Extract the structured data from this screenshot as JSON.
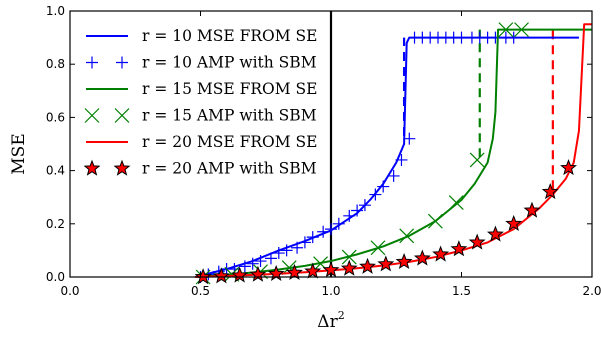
{
  "chart_data": {
    "type": "line",
    "xlabel": "Δr",
    "xlabel_sup": "2",
    "ylabel": "MSE",
    "xlim": [
      0.0,
      2.0
    ],
    "ylim": [
      0.0,
      1.0
    ],
    "xticks": [
      "0.0",
      "0.5",
      "1.0",
      "1.5",
      "2.0"
    ],
    "yticks": [
      "0.0",
      "0.2",
      "0.4",
      "0.6",
      "0.8",
      "1.0"
    ],
    "grid": false,
    "legend_position": "upper-left",
    "vertical_reference_line": {
      "x": 1.0,
      "color": "#000000"
    },
    "series": [
      {
        "name": "r = 10 MSE FROM SE",
        "style": "solid",
        "color": "#0000ff",
        "x": [
          0.48,
          0.6,
          0.7,
          0.8,
          0.9,
          1.0,
          1.1,
          1.15,
          1.2,
          1.25,
          1.28,
          1.29,
          1.3,
          1.95
        ],
        "y": [
          0.0,
          0.03,
          0.06,
          0.1,
          0.135,
          0.175,
          0.24,
          0.29,
          0.35,
          0.43,
          0.5,
          0.88,
          0.9,
          0.9
        ]
      },
      {
        "name": "r = 10 AMP with SBM",
        "style": "markers",
        "marker": "plus",
        "color": "#0000ff",
        "x": [
          0.5,
          0.53,
          0.57,
          0.6,
          0.63,
          0.67,
          0.7,
          0.73,
          0.77,
          0.8,
          0.83,
          0.87,
          0.9,
          0.93,
          0.97,
          1.0,
          1.03,
          1.07,
          1.1,
          1.13,
          1.17,
          1.2,
          1.24,
          1.27,
          1.3,
          1.32,
          1.35,
          1.38,
          1.41,
          1.44,
          1.47,
          1.5,
          1.54,
          1.57,
          1.6,
          1.63,
          1.67,
          1.7
        ],
        "y": [
          0.0,
          0.01,
          0.02,
          0.03,
          0.03,
          0.04,
          0.05,
          0.06,
          0.07,
          0.09,
          0.1,
          0.11,
          0.13,
          0.15,
          0.17,
          0.18,
          0.2,
          0.23,
          0.25,
          0.27,
          0.31,
          0.34,
          0.38,
          0.44,
          0.52,
          0.9,
          0.9,
          0.9,
          0.9,
          0.9,
          0.9,
          0.9,
          0.9,
          0.9,
          0.9,
          0.9,
          0.9,
          0.9
        ]
      },
      {
        "name": "r = 15 MSE FROM SE",
        "style": "solid",
        "color": "#008000",
        "x": [
          0.48,
          0.6,
          0.7,
          0.8,
          0.9,
          1.0,
          1.1,
          1.2,
          1.3,
          1.4,
          1.5,
          1.55,
          1.6,
          1.62,
          1.63,
          1.64,
          2.0
        ],
        "y": [
          0.0,
          0.008,
          0.017,
          0.028,
          0.042,
          0.06,
          0.085,
          0.115,
          0.155,
          0.21,
          0.29,
          0.35,
          0.43,
          0.52,
          0.62,
          0.93,
          0.93
        ]
      },
      {
        "name": "r = 15 AMP with SBM",
        "style": "markers",
        "marker": "x",
        "color": "#008000",
        "x": [
          0.51,
          0.62,
          0.73,
          0.84,
          0.96,
          1.07,
          1.18,
          1.29,
          1.4,
          1.48,
          1.56,
          1.67,
          1.73
        ],
        "y": [
          0.0,
          0.01,
          0.02,
          0.035,
          0.05,
          0.075,
          0.11,
          0.155,
          0.21,
          0.28,
          0.44,
          0.93,
          0.93
        ]
      },
      {
        "name": "r = 20 MSE FROM SE",
        "style": "solid",
        "color": "#ff0000",
        "x": [
          0.48,
          0.6,
          0.7,
          0.8,
          0.9,
          1.0,
          1.1,
          1.2,
          1.3,
          1.4,
          1.5,
          1.6,
          1.7,
          1.8,
          1.85,
          1.9,
          1.93,
          1.95,
          1.96,
          1.97,
          2.0
        ],
        "y": [
          0.0,
          0.004,
          0.008,
          0.012,
          0.018,
          0.025,
          0.033,
          0.043,
          0.057,
          0.075,
          0.1,
          0.13,
          0.18,
          0.26,
          0.31,
          0.37,
          0.43,
          0.55,
          0.75,
          0.95,
          0.95
        ]
      },
      {
        "name": "r = 20 AMP with SBM",
        "style": "markers",
        "marker": "star",
        "color": "#ff0000",
        "x": [
          0.51,
          0.58,
          0.65,
          0.72,
          0.79,
          0.86,
          0.93,
          1.0,
          1.07,
          1.14,
          1.21,
          1.28,
          1.35,
          1.42,
          1.49,
          1.56,
          1.63,
          1.7,
          1.77,
          1.84,
          1.91
        ],
        "y": [
          0.0,
          0.003,
          0.006,
          0.009,
          0.012,
          0.016,
          0.021,
          0.026,
          0.032,
          0.039,
          0.048,
          0.057,
          0.07,
          0.085,
          0.105,
          0.13,
          0.16,
          0.2,
          0.25,
          0.32,
          0.41
        ]
      }
    ],
    "threshold_lines": [
      {
        "x": 1.28,
        "y_from": 0.53,
        "y_to": 0.9,
        "color": "#0000ff",
        "style": "dashed"
      },
      {
        "x": 1.57,
        "y_from": 0.45,
        "y_to": 0.93,
        "color": "#008000",
        "style": "dashed"
      },
      {
        "x": 1.85,
        "y_from": 0.33,
        "y_to": 0.93,
        "color": "#ff0000",
        "style": "dashed"
      }
    ]
  }
}
